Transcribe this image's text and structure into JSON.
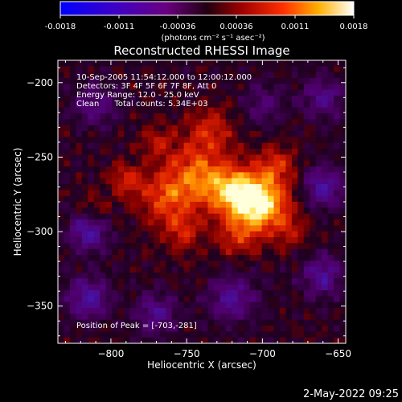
{
  "colorbar": {
    "ticks": [
      "-0.0018",
      "-0.0011",
      "-0.00036",
      "0.00036",
      "0.0011",
      "0.0018"
    ],
    "units": "(photons cm⁻² s⁻¹ asec⁻²)"
  },
  "plot": {
    "title": "Reconstructed RHESSI Image",
    "annotations": [
      "10-Sep-2005 11:54:12.000 to 12:00:12.000",
      "Detectors: 3F 4F 5F 6F 7F 8F, Att 0",
      "Energy Range: 12.0 - 25.0 keV",
      "Clean      Total counts: 5.34E+03"
    ],
    "peak_label": "Position of Peak = [-703,-281]",
    "footer_date": "2-May-2022 09:25"
  },
  "chart_data": {
    "type": "heatmap",
    "title": "Reconstructed RHESSI Image",
    "xlabel": "Heliocentric X (arcsec)",
    "ylabel": "Heliocentric Y (arcsec)",
    "xlim": [
      -835,
      -645
    ],
    "ylim": [
      -375,
      -185
    ],
    "xticks": [
      -800,
      -750,
      -700,
      -650
    ],
    "yticks": [
      -200,
      -250,
      -300,
      -350
    ],
    "xtick_labels": [
      "−800",
      "−750",
      "−700",
      "−650"
    ],
    "ytick_labels": [
      "−200",
      "−250",
      "−300",
      "−350"
    ],
    "colorbar_range": [
      -0.0018,
      0.0018
    ],
    "colormap": "blue-purple-red-yellow-white",
    "peak": {
      "x": -703,
      "y": -281
    },
    "sources": [
      {
        "x": -703,
        "y": -281,
        "sigma": 14,
        "amp": 1.0
      },
      {
        "x": -722,
        "y": -272,
        "sigma": 12,
        "amp": 0.55
      },
      {
        "x": -745,
        "y": -262,
        "sigma": 14,
        "amp": 0.55
      },
      {
        "x": -765,
        "y": -278,
        "sigma": 12,
        "amp": 0.45
      },
      {
        "x": -790,
        "y": -265,
        "sigma": 8,
        "amp": 0.4
      },
      {
        "x": -735,
        "y": -232,
        "sigma": 11,
        "amp": 0.4
      },
      {
        "x": -752,
        "y": -300,
        "sigma": 10,
        "amp": 0.35
      },
      {
        "x": -690,
        "y": -255,
        "sigma": 9,
        "amp": 0.35
      },
      {
        "x": -718,
        "y": -305,
        "sigma": 9,
        "amp": 0.3
      },
      {
        "x": -810,
        "y": -285,
        "sigma": 7,
        "amp": 0.25
      },
      {
        "x": -770,
        "y": -240,
        "sigma": 8,
        "amp": 0.3
      },
      {
        "x": -680,
        "y": -300,
        "sigma": 8,
        "amp": 0.25
      }
    ],
    "negative_regions": [
      {
        "x": -815,
        "y": -300,
        "sigma": 9,
        "amp": -0.55
      },
      {
        "x": -815,
        "y": -345,
        "sigma": 10,
        "amp": -0.5
      },
      {
        "x": -720,
        "y": -345,
        "sigma": 11,
        "amp": -0.45
      },
      {
        "x": -660,
        "y": -270,
        "sigma": 10,
        "amp": -0.5
      },
      {
        "x": -660,
        "y": -330,
        "sigma": 10,
        "amp": -0.45
      },
      {
        "x": -660,
        "y": -210,
        "sigma": 10,
        "amp": -0.4
      },
      {
        "x": -810,
        "y": -215,
        "sigma": 10,
        "amp": -0.35
      },
      {
        "x": -770,
        "y": -355,
        "sigma": 10,
        "amp": -0.4
      },
      {
        "x": -700,
        "y": -215,
        "sigma": 9,
        "amp": -0.3
      }
    ]
  }
}
